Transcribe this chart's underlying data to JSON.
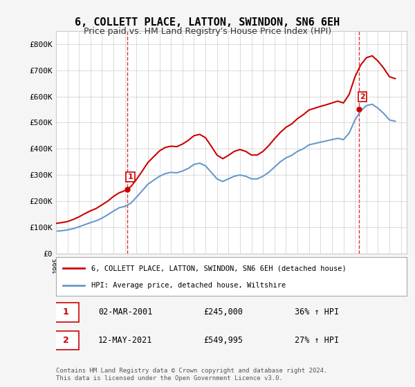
{
  "title": "6, COLLETT PLACE, LATTON, SWINDON, SN6 6EH",
  "subtitle": "Price paid vs. HM Land Registry's House Price Index (HPI)",
  "ylabel": "",
  "ylim": [
    0,
    850000
  ],
  "yticks": [
    0,
    100000,
    200000,
    300000,
    400000,
    500000,
    600000,
    700000,
    800000
  ],
  "ytick_labels": [
    "£0",
    "£100K",
    "£200K",
    "£300K",
    "£400K",
    "£500K",
    "£600K",
    "£700K",
    "£800K"
  ],
  "sale1_date": 2001.17,
  "sale1_price": 245000,
  "sale1_label": "1",
  "sale2_date": 2021.37,
  "sale2_price": 549995,
  "sale2_label": "2",
  "legend_property": "6, COLLETT PLACE, LATTON, SWINDON, SN6 6EH (detached house)",
  "legend_hpi": "HPI: Average price, detached house, Wiltshire",
  "annotation1_date": "02-MAR-2001",
  "annotation1_price": "£245,000",
  "annotation1_hpi": "36% ↑ HPI",
  "annotation2_date": "12-MAY-2021",
  "annotation2_price": "£549,995",
  "annotation2_hpi": "27% ↑ HPI",
  "footer": "Contains HM Land Registry data © Crown copyright and database right 2024.\nThis data is licensed under the Open Government Licence v3.0.",
  "property_color": "#cc0000",
  "hpi_color": "#6699cc",
  "bg_color": "#f5f5f5",
  "plot_bg_color": "#ffffff",
  "hpi_data_x": [
    1995.0,
    1995.5,
    1996.0,
    1996.5,
    1997.0,
    1997.5,
    1998.0,
    1998.5,
    1999.0,
    1999.5,
    2000.0,
    2000.5,
    2001.0,
    2001.5,
    2002.0,
    2002.5,
    2003.0,
    2003.5,
    2004.0,
    2004.5,
    2005.0,
    2005.5,
    2006.0,
    2006.5,
    2007.0,
    2007.5,
    2008.0,
    2008.5,
    2009.0,
    2009.5,
    2010.0,
    2010.5,
    2011.0,
    2011.5,
    2012.0,
    2012.5,
    2013.0,
    2013.5,
    2014.0,
    2014.5,
    2015.0,
    2015.5,
    2016.0,
    2016.5,
    2017.0,
    2017.5,
    2018.0,
    2018.5,
    2019.0,
    2019.5,
    2020.0,
    2020.5,
    2021.0,
    2021.5,
    2022.0,
    2022.5,
    2023.0,
    2023.5,
    2024.0,
    2024.5
  ],
  "hpi_data_y": [
    85000,
    87000,
    90000,
    95000,
    102000,
    110000,
    118000,
    125000,
    135000,
    148000,
    162000,
    175000,
    180000,
    192000,
    215000,
    240000,
    265000,
    280000,
    295000,
    305000,
    310000,
    308000,
    315000,
    325000,
    340000,
    345000,
    335000,
    310000,
    285000,
    275000,
    285000,
    295000,
    300000,
    295000,
    285000,
    285000,
    295000,
    310000,
    330000,
    350000,
    365000,
    375000,
    390000,
    400000,
    415000,
    420000,
    425000,
    430000,
    435000,
    440000,
    435000,
    460000,
    510000,
    545000,
    565000,
    570000,
    555000,
    535000,
    510000,
    505000
  ],
  "property_data_x": [
    1995.0,
    1995.5,
    1996.0,
    1996.5,
    1997.0,
    1997.5,
    1998.0,
    1998.5,
    1999.0,
    1999.5,
    2000.0,
    2000.5,
    2001.0,
    2001.5,
    2002.0,
    2002.5,
    2003.0,
    2003.5,
    2004.0,
    2004.5,
    2005.0,
    2005.5,
    2006.0,
    2006.5,
    2007.0,
    2007.5,
    2008.0,
    2008.5,
    2009.0,
    2009.5,
    2010.0,
    2010.5,
    2011.0,
    2011.5,
    2012.0,
    2012.5,
    2013.0,
    2013.5,
    2014.0,
    2014.5,
    2015.0,
    2015.5,
    2016.0,
    2016.5,
    2017.0,
    2017.5,
    2018.0,
    2018.5,
    2019.0,
    2019.5,
    2020.0,
    2020.5,
    2021.0,
    2021.5,
    2022.0,
    2022.5,
    2023.0,
    2023.5,
    2024.0,
    2024.5
  ],
  "property_data_y": [
    115000,
    118000,
    122000,
    130000,
    140000,
    152000,
    163000,
    172000,
    186000,
    200000,
    218000,
    232000,
    240000,
    255000,
    283000,
    315000,
    348000,
    370000,
    392000,
    405000,
    410000,
    408000,
    418000,
    432000,
    450000,
    455000,
    442000,
    410000,
    376000,
    362000,
    375000,
    390000,
    397000,
    390000,
    376000,
    376000,
    390000,
    412000,
    438000,
    462000,
    482000,
    495000,
    515000,
    530000,
    548000,
    555000,
    562000,
    568000,
    575000,
    582000,
    575000,
    608000,
    675000,
    720000,
    748000,
    755000,
    735000,
    708000,
    675000,
    668000
  ]
}
